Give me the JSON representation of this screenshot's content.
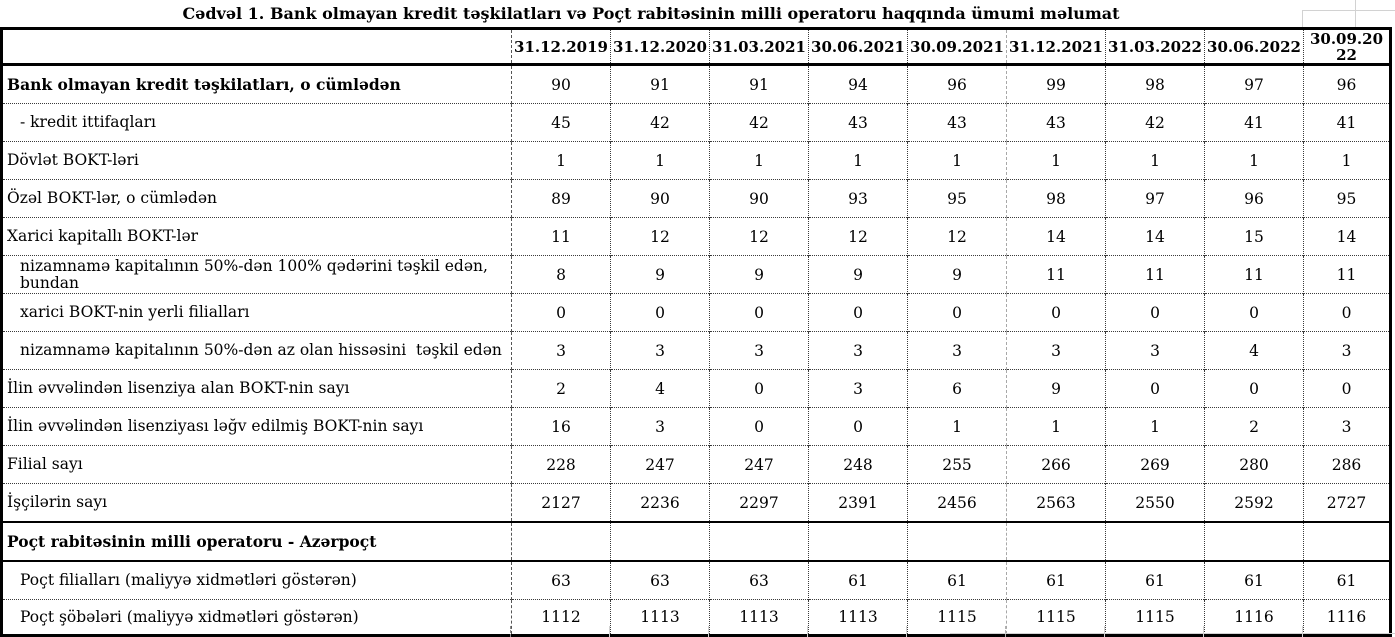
{
  "title": "Cədvəl 1. Bank olmayan kredit təşkilatları və Poçt rabitəsinin milli operatoru haqqında ümumi məlumat",
  "table": {
    "columns": [
      "31.12.2019",
      "31.12.2020",
      "31.03.2021",
      "30.06.2021",
      "30.09.2021",
      "31.12.2021",
      "31.03.2022",
      "30.06.2022",
      "30.09.2022"
    ],
    "rows": [
      {
        "label": "Bank olmayan kredit təşkilatları, o cümlədən",
        "bold": true,
        "indent": 0,
        "values": [
          "90",
          "91",
          "91",
          "94",
          "96",
          "99",
          "98",
          "97",
          "96"
        ]
      },
      {
        "label": "- kredit ittifaqları",
        "bold": false,
        "indent": 1,
        "values": [
          "45",
          "42",
          "42",
          "43",
          "43",
          "43",
          "42",
          "41",
          "41"
        ]
      },
      {
        "label": "Dövlət BOKT-ləri",
        "bold": false,
        "indent": 0,
        "values": [
          "1",
          "1",
          "1",
          "1",
          "1",
          "1",
          "1",
          "1",
          "1"
        ]
      },
      {
        "label": "Özəl BOKT-lər, o cümlədən",
        "bold": false,
        "indent": 0,
        "values": [
          "89",
          "90",
          "90",
          "93",
          "95",
          "98",
          "97",
          "96",
          "95"
        ]
      },
      {
        "label": "Xarici kapitallı BOKT-lər",
        "bold": false,
        "indent": 0,
        "values": [
          "11",
          "12",
          "12",
          "12",
          "12",
          "14",
          "14",
          "15",
          "14"
        ]
      },
      {
        "label": "nizamnamə kapitalının 50%-dən 100% qədərini təşkil edən,\nbundan",
        "bold": false,
        "indent": 1,
        "values": [
          "8",
          "9",
          "9",
          "9",
          "9",
          "11",
          "11",
          "11",
          "11"
        ]
      },
      {
        "label": "xarici BOKT-nin yerli filialları",
        "bold": false,
        "indent": 1,
        "values": [
          "0",
          "0",
          "0",
          "0",
          "0",
          "0",
          "0",
          "0",
          "0"
        ]
      },
      {
        "label": "nizamnamə kapitalının 50%-dən az olan hissəsini  təşkil edən",
        "bold": false,
        "indent": 1,
        "values": [
          "3",
          "3",
          "3",
          "3",
          "3",
          "3",
          "3",
          "4",
          "3"
        ]
      },
      {
        "label": "İlin əvvəlindən lisenziya alan BOKT-nin sayı",
        "bold": false,
        "indent": 0,
        "values": [
          "2",
          "4",
          "0",
          "3",
          "6",
          "9",
          "0",
          "0",
          "0"
        ]
      },
      {
        "label": "İlin əvvəlindən lisenziyası ləğv edilmiş BOKT-nin sayı",
        "bold": false,
        "indent": 0,
        "values": [
          "16",
          "3",
          "0",
          "0",
          "1",
          "1",
          "1",
          "2",
          "3"
        ]
      },
      {
        "label": "Filial sayı",
        "bold": false,
        "indent": 0,
        "values": [
          "228",
          "247",
          "247",
          "248",
          "255",
          "266",
          "269",
          "280",
          "286"
        ]
      },
      {
        "label": "İşçilərin sayı",
        "bold": false,
        "indent": 0,
        "values": [
          "2127",
          "2236",
          "2297",
          "2391",
          "2456",
          "2563",
          "2550",
          "2592",
          "2727"
        ]
      },
      {
        "label": "Poçt rabitəsinin milli operatoru - Azərpoçt",
        "bold": true,
        "indent": 0,
        "section": true,
        "values": [
          "",
          "",
          "",
          "",
          "",
          "",
          "",
          "",
          ""
        ]
      },
      {
        "label": "Poçt filialları (maliyyə xidmətləri göstərən)",
        "bold": false,
        "indent": 1,
        "values": [
          "63",
          "63",
          "63",
          "61",
          "61",
          "61",
          "61",
          "61",
          "61"
        ]
      },
      {
        "label": "Poçt şöbələri (maliyyə xidmətləri göstərən)",
        "bold": false,
        "indent": 1,
        "values": [
          "1112",
          "1113",
          "1113",
          "1113",
          "1115",
          "1115",
          "1115",
          "1116",
          "1116"
        ]
      }
    ]
  }
}
